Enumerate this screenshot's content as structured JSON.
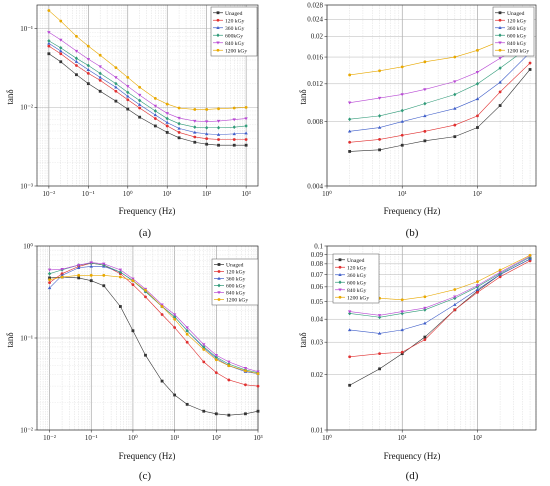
{
  "series_colors": [
    "#333333",
    "#e03030",
    "#3f5ec9",
    "#2f9a78",
    "#b84ad4",
    "#e8a800"
  ],
  "chart_data": [
    {
      "type": "line",
      "panel_label": "(a)",
      "xscale": "log",
      "yscale": "log",
      "xlim": [
        0.005,
        2000
      ],
      "ylim": [
        0.001,
        0.2
      ],
      "xlabel": "Frequency (Hz)",
      "ylabel": "tanδ",
      "xticks": [
        0.01,
        0.1,
        1,
        10,
        100,
        1000
      ],
      "xticklabels": [
        "10⁻²",
        "10⁻¹",
        "10⁰",
        "10¹",
        "10²",
        "10³"
      ],
      "yticks": [
        0.001,
        0.01,
        0.1
      ],
      "yticklabels": [
        "10⁻³",
        "10⁻²",
        "10⁻¹"
      ],
      "grid": true,
      "legend": "top-right",
      "x": [
        0.01,
        0.02,
        0.05,
        0.1,
        0.2,
        0.5,
        1,
        2,
        5,
        10,
        20,
        50,
        100,
        200,
        500,
        1000
      ],
      "series": [
        {
          "name": "Unaged",
          "values": [
            0.048,
            0.038,
            0.026,
            0.02,
            0.016,
            0.012,
            0.0095,
            0.0075,
            0.0058,
            0.0048,
            0.0041,
            0.0036,
            0.0034,
            0.0033,
            0.0033,
            0.0033
          ]
        },
        {
          "name": "120 kGy",
          "values": [
            0.06,
            0.048,
            0.034,
            0.027,
            0.022,
            0.016,
            0.0125,
            0.0098,
            0.0072,
            0.0058,
            0.0048,
            0.0042,
            0.004,
            0.0039,
            0.0039,
            0.0039
          ]
        },
        {
          "name": "360 kGy",
          "values": [
            0.065,
            0.052,
            0.038,
            0.03,
            0.024,
            0.018,
            0.0138,
            0.0108,
            0.008,
            0.0064,
            0.0054,
            0.0048,
            0.0046,
            0.0045,
            0.0046,
            0.0047
          ]
        },
        {
          "name": "600kGy",
          "values": [
            0.07,
            0.057,
            0.042,
            0.034,
            0.027,
            0.02,
            0.0155,
            0.0122,
            0.009,
            0.0072,
            0.0062,
            0.0056,
            0.0055,
            0.0055,
            0.0056,
            0.0058
          ]
        },
        {
          "name": "840 kGy",
          "values": [
            0.09,
            0.072,
            0.052,
            0.041,
            0.033,
            0.024,
            0.0185,
            0.0143,
            0.0104,
            0.0084,
            0.0073,
            0.0067,
            0.0066,
            0.0067,
            0.007,
            0.0072
          ]
        },
        {
          "name": "1200 kGy",
          "values": [
            0.17,
            0.125,
            0.08,
            0.06,
            0.046,
            0.032,
            0.024,
            0.018,
            0.013,
            0.011,
            0.0098,
            0.0094,
            0.0094,
            0.0096,
            0.0098,
            0.01
          ]
        }
      ]
    },
    {
      "type": "line",
      "panel_label": "(b)",
      "xscale": "log",
      "yscale": "log",
      "xlim": [
        1,
        600
      ],
      "ylim": [
        0.004,
        0.028
      ],
      "xlabel": "Frequency (Hz)",
      "ylabel": "tanδ",
      "xticks": [
        1,
        10,
        100
      ],
      "xticklabels": [
        "10⁰",
        "10¹",
        "10²"
      ],
      "yticks": [
        0.004,
        0.008,
        0.012,
        0.016,
        0.02,
        0.024,
        0.028
      ],
      "yticklabels": [
        "0.004",
        "0.008",
        "0.012",
        "0.016",
        "0.02",
        "0.024",
        "0.028"
      ],
      "grid": true,
      "legend": "top-right",
      "x": [
        2,
        5,
        10,
        20,
        50,
        100,
        200,
        500
      ],
      "series": [
        {
          "name": "Unaged",
          "values": [
            0.0058,
            0.0059,
            0.0062,
            0.0065,
            0.0068,
            0.0075,
            0.0095,
            0.014
          ]
        },
        {
          "name": "120 kGy",
          "values": [
            0.0064,
            0.0066,
            0.0069,
            0.0072,
            0.0077,
            0.0085,
            0.011,
            0.015
          ]
        },
        {
          "name": "360 kGy",
          "values": [
            0.0072,
            0.0075,
            0.008,
            0.0085,
            0.0092,
            0.0102,
            0.0122,
            0.0168
          ]
        },
        {
          "name": "600 kGy",
          "values": [
            0.0082,
            0.0085,
            0.009,
            0.0097,
            0.0107,
            0.012,
            0.0142,
            0.018
          ]
        },
        {
          "name": "840 kGy",
          "values": [
            0.0098,
            0.0103,
            0.0107,
            0.0113,
            0.0123,
            0.0136,
            0.0158,
            0.019
          ]
        },
        {
          "name": "1200 kGy",
          "values": [
            0.0132,
            0.0138,
            0.0144,
            0.0152,
            0.016,
            0.0172,
            0.019,
            0.0222
          ]
        }
      ]
    },
    {
      "type": "line",
      "panel_label": "(c)",
      "xscale": "log",
      "yscale": "log",
      "xlim": [
        0.005,
        1000
      ],
      "ylim": [
        0.01,
        1
      ],
      "xlabel": "Frequency (Hz)",
      "ylabel": "tanδ",
      "xticks": [
        0.01,
        0.1,
        1,
        10,
        100,
        1000
      ],
      "xticklabels": [
        "10⁻²",
        "10⁻¹",
        "10⁰",
        "10¹",
        "10²",
        "10³"
      ],
      "yticks": [
        0.01,
        0.1,
        1
      ],
      "yticklabels": [
        "10⁻²",
        "10⁻¹",
        "10⁰"
      ],
      "grid": true,
      "legend": "right",
      "x": [
        0.01,
        0.02,
        0.05,
        0.1,
        0.2,
        0.5,
        1,
        2,
        5,
        10,
        20,
        50,
        100,
        200,
        500,
        1000
      ],
      "series": [
        {
          "name": "Unaged",
          "values": [
            0.45,
            0.46,
            0.45,
            0.42,
            0.37,
            0.22,
            0.12,
            0.065,
            0.034,
            0.024,
            0.019,
            0.016,
            0.015,
            0.0145,
            0.015,
            0.016
          ]
        },
        {
          "name": "120 kGy",
          "values": [
            0.4,
            0.5,
            0.6,
            0.65,
            0.62,
            0.5,
            0.38,
            0.28,
            0.18,
            0.13,
            0.09,
            0.055,
            0.042,
            0.035,
            0.031,
            0.03
          ]
        },
        {
          "name": "360 kGy",
          "values": [
            0.35,
            0.48,
            0.58,
            0.6,
            0.6,
            0.52,
            0.42,
            0.32,
            0.22,
            0.17,
            0.12,
            0.078,
            0.06,
            0.05,
            0.043,
            0.041
          ]
        },
        {
          "name": "600 kGy",
          "values": [
            0.5,
            0.55,
            0.62,
            0.65,
            0.62,
            0.52,
            0.42,
            0.32,
            0.22,
            0.17,
            0.12,
            0.08,
            0.062,
            0.052,
            0.045,
            0.042
          ]
        },
        {
          "name": "840 kGy",
          "values": [
            0.55,
            0.56,
            0.62,
            0.66,
            0.64,
            0.55,
            0.44,
            0.34,
            0.23,
            0.18,
            0.13,
            0.085,
            0.065,
            0.055,
            0.047,
            0.043
          ]
        },
        {
          "name": "1200 kGy",
          "values": [
            0.43,
            0.46,
            0.48,
            0.48,
            0.48,
            0.46,
            0.42,
            0.33,
            0.22,
            0.16,
            0.11,
            0.075,
            0.058,
            0.05,
            0.044,
            0.041
          ]
        }
      ]
    },
    {
      "type": "line",
      "panel_label": "(d)",
      "xscale": "log",
      "yscale": "log",
      "xlim": [
        1,
        600
      ],
      "ylim": [
        0.01,
        0.1
      ],
      "xlabel": "Frequency (Hz)",
      "ylabel": "tanδ",
      "xticks": [
        1,
        10,
        100
      ],
      "xticklabels": [
        "10⁰",
        "10¹",
        "10²"
      ],
      "yticks": [
        0.01,
        0.02,
        0.03,
        0.04,
        0.05,
        0.06,
        0.07,
        0.08,
        0.09,
        0.1
      ],
      "yticklabels": [
        "0.01",
        "0.02",
        "0.03",
        "0.04",
        "0.05",
        "0.06",
        "0.07",
        "0.08",
        "0.09",
        "0.1"
      ],
      "grid": true,
      "legend": "top-left",
      "x": [
        2,
        5,
        10,
        20,
        50,
        100,
        200,
        500
      ],
      "series": [
        {
          "name": "Unaged",
          "values": [
            0.0175,
            0.0215,
            0.026,
            0.032,
            0.045,
            0.057,
            0.07,
            0.085
          ]
        },
        {
          "name": "120 kGy",
          "values": [
            0.025,
            0.026,
            0.0265,
            0.031,
            0.045,
            0.056,
            0.068,
            0.083
          ]
        },
        {
          "name": "360 kGy",
          "values": [
            0.035,
            0.0335,
            0.035,
            0.038,
            0.048,
            0.058,
            0.07,
            0.085
          ]
        },
        {
          "name": "600 kGy",
          "values": [
            0.043,
            0.041,
            0.043,
            0.045,
            0.052,
            0.06,
            0.071,
            0.087
          ]
        },
        {
          "name": "840 kGy",
          "values": [
            0.044,
            0.042,
            0.044,
            0.046,
            0.053,
            0.061,
            0.072,
            0.088
          ]
        },
        {
          "name": "1200 kGy",
          "values": [
            0.057,
            0.052,
            0.051,
            0.053,
            0.058,
            0.064,
            0.074,
            0.089
          ]
        }
      ]
    }
  ]
}
